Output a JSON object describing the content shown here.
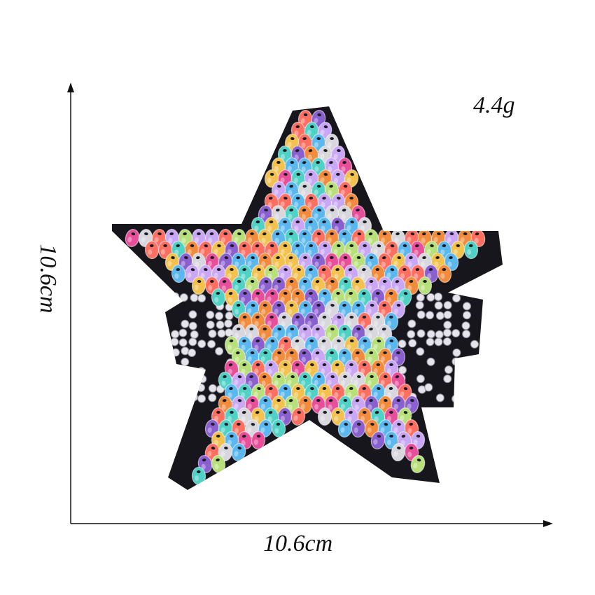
{
  "product": {
    "name_icon": "sequin-star-patch",
    "weight": "4.4g",
    "width": "10.6cm",
    "height": "10.6cm"
  },
  "colors": {
    "patch_backing": "#16161c",
    "axis": "#111111",
    "sequin_palette": [
      "#f2c14e",
      "#5bb8ee",
      "#e84f9a",
      "#8a5fd0",
      "#f28b3c",
      "#d7d7dd",
      "#b8e07a",
      "#ff6f61",
      "#4fd1c5",
      "#c9a7f5"
    ]
  }
}
